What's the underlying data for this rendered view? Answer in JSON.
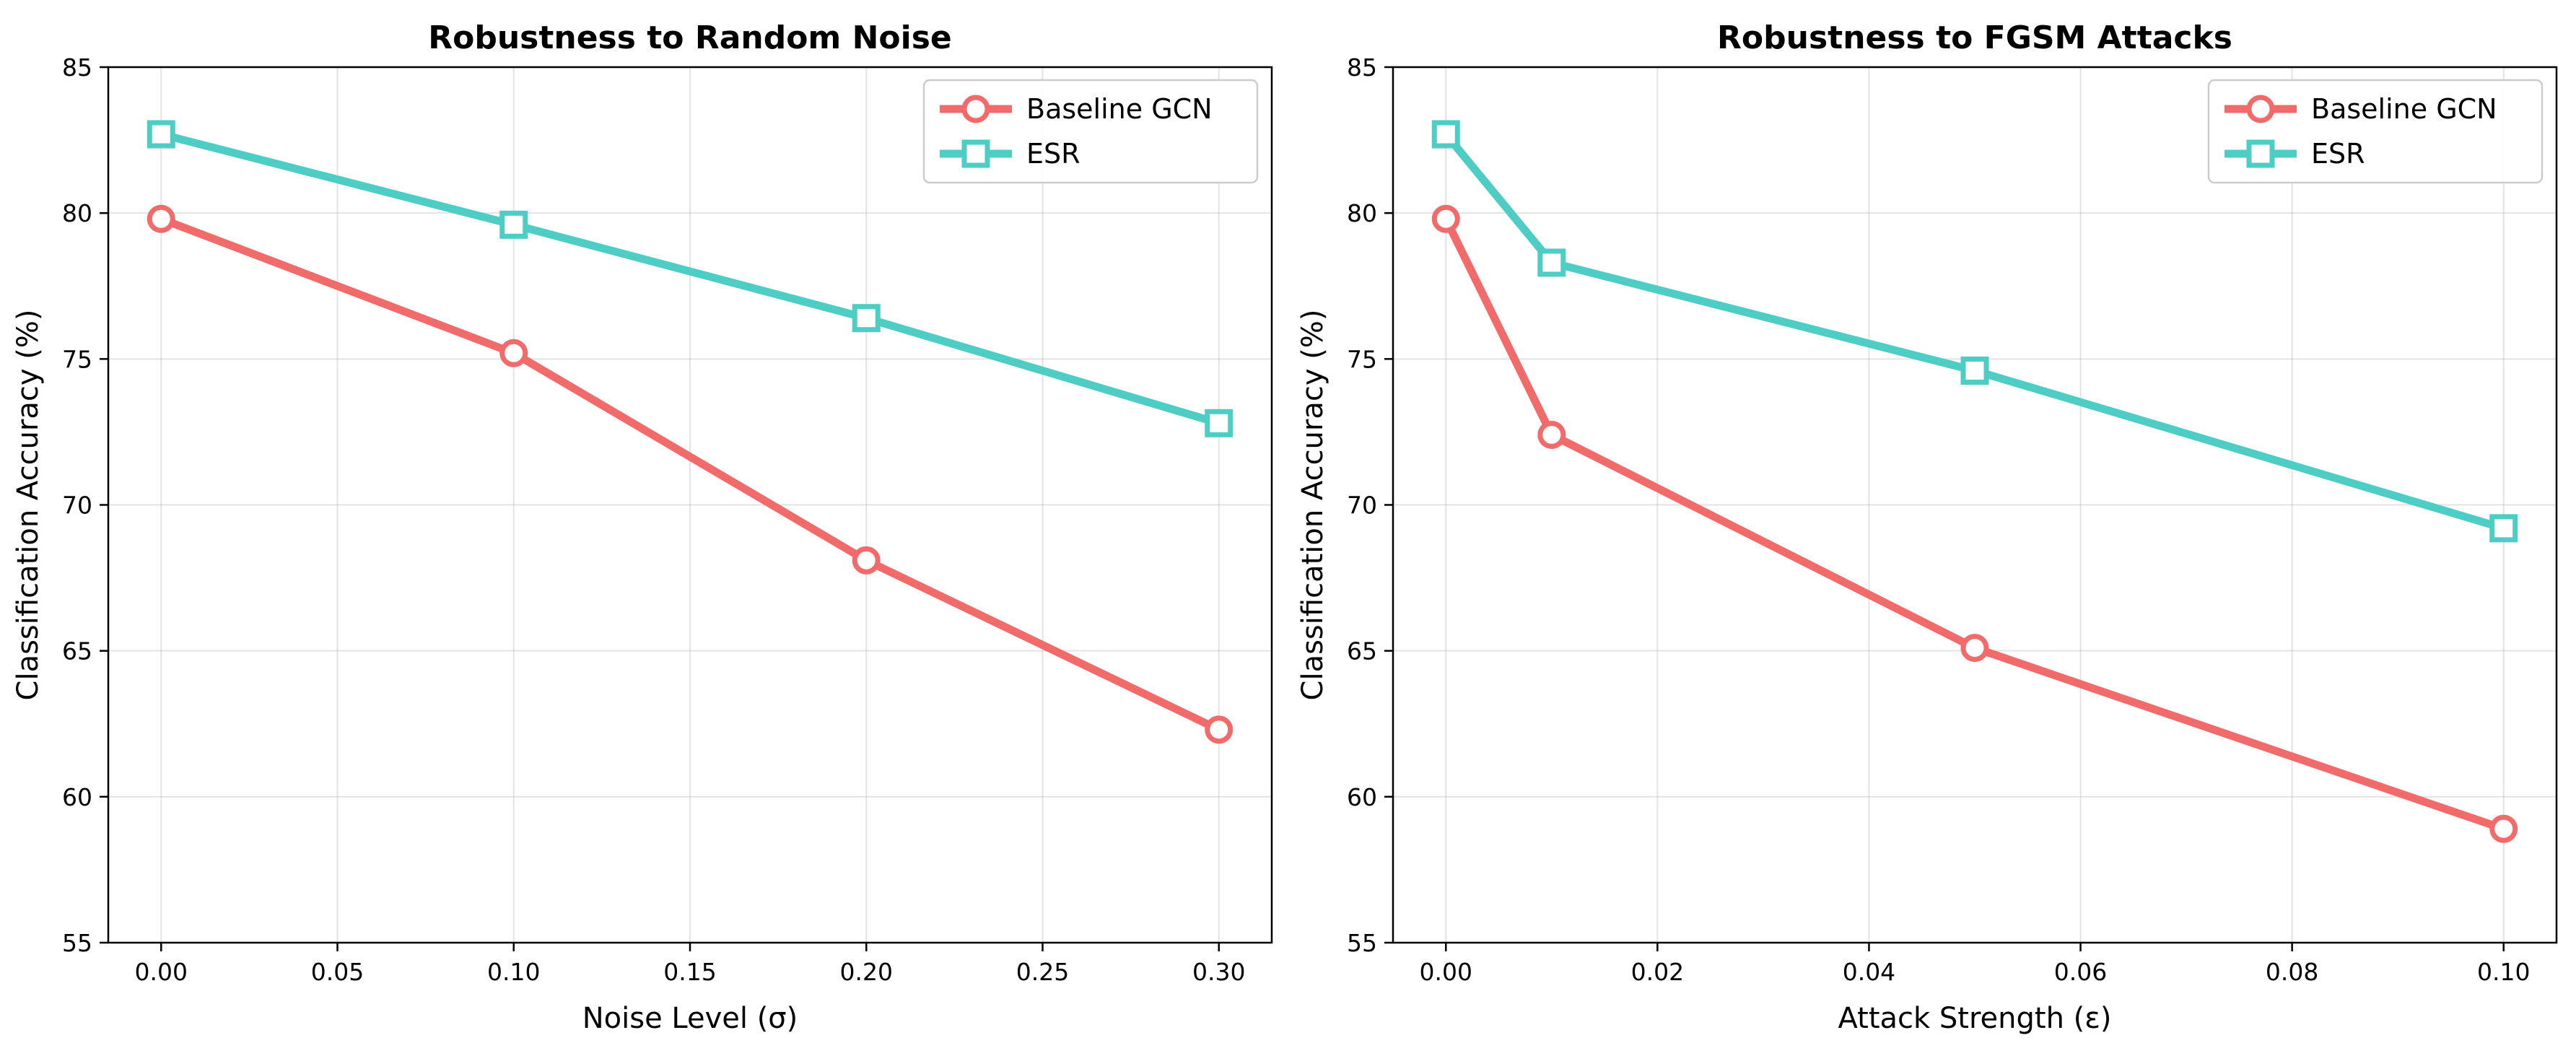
{
  "chart_data": [
    {
      "type": "line",
      "title": "Robustness to Random Noise",
      "xlabel": "Noise Level (σ)",
      "ylabel": "Classification Accuracy (%)",
      "x": [
        0.0,
        0.1,
        0.2,
        0.3
      ],
      "xlim": [
        -0.015,
        0.315
      ],
      "ylim": [
        55,
        85
      ],
      "xticks": [
        "0.00",
        "0.05",
        "0.10",
        "0.15",
        "0.20",
        "0.25",
        "0.30"
      ],
      "xtick_values": [
        0.0,
        0.05,
        0.1,
        0.15,
        0.2,
        0.25,
        0.3
      ],
      "yticks": [
        "55",
        "60",
        "65",
        "70",
        "75",
        "80",
        "85"
      ],
      "ytick_values": [
        55,
        60,
        65,
        70,
        75,
        80,
        85
      ],
      "grid": true,
      "legend": "upper right",
      "series": [
        {
          "name": "Baseline GCN",
          "values": [
            79.8,
            75.2,
            68.1,
            62.3
          ],
          "color": "#f26b6b",
          "marker": "circle"
        },
        {
          "name": "ESR",
          "values": [
            82.7,
            79.6,
            76.4,
            72.8
          ],
          "color": "#4ecdc4",
          "marker": "square"
        }
      ]
    },
    {
      "type": "line",
      "title": "Robustness to FGSM Attacks",
      "xlabel": "Attack Strength (ε)",
      "ylabel": "Classification Accuracy (%)",
      "x": [
        0.0,
        0.01,
        0.05,
        0.1
      ],
      "xlim": [
        -0.005,
        0.105
      ],
      "ylim": [
        55,
        85
      ],
      "xticks": [
        "0.00",
        "0.02",
        "0.04",
        "0.06",
        "0.08",
        "0.10"
      ],
      "xtick_values": [
        0.0,
        0.02,
        0.04,
        0.06,
        0.08,
        0.1
      ],
      "yticks": [
        "55",
        "60",
        "65",
        "70",
        "75",
        "80",
        "85"
      ],
      "ytick_values": [
        55,
        60,
        65,
        70,
        75,
        80,
        85
      ],
      "grid": true,
      "legend": "upper right",
      "series": [
        {
          "name": "Baseline GCN",
          "values": [
            79.8,
            72.4,
            65.1,
            58.9
          ],
          "color": "#f26b6b",
          "marker": "circle"
        },
        {
          "name": "ESR",
          "values": [
            82.7,
            78.3,
            74.6,
            69.2
          ],
          "color": "#4ecdc4",
          "marker": "square"
        }
      ]
    }
  ]
}
